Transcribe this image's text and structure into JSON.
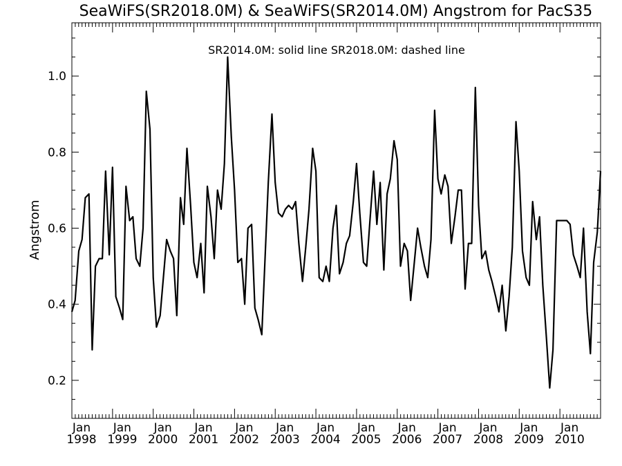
{
  "chart_data": {
    "type": "line",
    "title": "SeaWiFS(SR2018.0M) & SeaWiFS(SR2014.0M)  Angstrom for PacS35",
    "legend_text": "SR2014.0M: solid line   SR2018.0M: dashed line",
    "ylabel": "Angstrom",
    "xlim": [
      1998.0,
      2011.0
    ],
    "ylim": [
      0.1,
      1.14
    ],
    "y_ticks": [
      0.2,
      0.4,
      0.6,
      0.8,
      1.0
    ],
    "y_tick_labels": [
      "0.2",
      "0.4",
      "0.6",
      "0.8",
      "1.0"
    ],
    "x_ticks": [
      1998,
      1999,
      2000,
      2001,
      2002,
      2003,
      2004,
      2005,
      2006,
      2007,
      2008,
      2009,
      2010
    ],
    "x_tick_month": "Jan",
    "x_tick_years": [
      "1998",
      "1999",
      "2000",
      "2001",
      "2002",
      "2003",
      "2004",
      "2005",
      "2006",
      "2007",
      "2008",
      "2009",
      "2010"
    ],
    "series": [
      {
        "style": "solid",
        "x": [
          1998.0,
          1998.08,
          1998.17,
          1998.25,
          1998.33,
          1998.42,
          1998.5,
          1998.58,
          1998.67,
          1998.75,
          1998.83,
          1998.92,
          1999.0,
          1999.08,
          1999.17,
          1999.25,
          1999.33,
          1999.42,
          1999.5,
          1999.58,
          1999.67,
          1999.75,
          1999.83,
          1999.92,
          2000.0,
          2000.08,
          2000.17,
          2000.25,
          2000.33,
          2000.42,
          2000.5,
          2000.58,
          2000.67,
          2000.75,
          2000.83,
          2000.92,
          2001.0,
          2001.08,
          2001.17,
          2001.25,
          2001.33,
          2001.42,
          2001.5,
          2001.58,
          2001.67,
          2001.75,
          2001.83,
          2001.92,
          2002.0,
          2002.08,
          2002.17,
          2002.25,
          2002.33,
          2002.42,
          2002.5,
          2002.58,
          2002.67,
          2002.75,
          2002.83,
          2002.92,
          2003.0,
          2003.08,
          2003.17,
          2003.25,
          2003.33,
          2003.42,
          2003.5,
          2003.58,
          2003.67,
          2003.75,
          2003.83,
          2003.92,
          2004.0,
          2004.08,
          2004.17,
          2004.25,
          2004.33,
          2004.42,
          2004.5,
          2004.58,
          2004.67,
          2004.75,
          2004.83,
          2004.92,
          2005.0,
          2005.08,
          2005.17,
          2005.25,
          2005.33,
          2005.42,
          2005.5,
          2005.58,
          2005.67,
          2005.75,
          2005.83,
          2005.92,
          2006.0,
          2006.08,
          2006.17,
          2006.25,
          2006.33,
          2006.42,
          2006.5,
          2006.58,
          2006.67,
          2006.75,
          2006.83,
          2006.92,
          2007.0,
          2007.08,
          2007.17,
          2007.25,
          2007.33,
          2007.42,
          2007.5,
          2007.58,
          2007.67,
          2007.75,
          2007.83,
          2007.92,
          2008.0,
          2008.08,
          2008.17,
          2008.25,
          2008.33,
          2008.42,
          2008.5,
          2008.58,
          2008.67,
          2008.75,
          2008.83,
          2008.92,
          2009.0,
          2009.08,
          2009.17,
          2009.25,
          2009.33,
          2009.42,
          2009.5,
          2009.58,
          2009.67,
          2009.75,
          2009.83,
          2009.92,
          2010.0,
          2010.08,
          2010.17,
          2010.25,
          2010.33,
          2010.42,
          2010.5,
          2010.58,
          2010.67,
          2010.75,
          2010.83,
          2010.92,
          2011.0
        ],
        "y": [
          0.38,
          0.41,
          0.54,
          0.57,
          0.68,
          0.69,
          0.28,
          0.5,
          0.52,
          0.52,
          0.75,
          0.53,
          0.76,
          0.42,
          0.39,
          0.36,
          0.71,
          0.62,
          0.63,
          0.52,
          0.5,
          0.6,
          0.96,
          0.86,
          0.47,
          0.34,
          0.37,
          0.47,
          0.57,
          0.54,
          0.52,
          0.37,
          0.68,
          0.61,
          0.81,
          0.66,
          0.51,
          0.47,
          0.56,
          0.43,
          0.71,
          0.63,
          0.52,
          0.7,
          0.65,
          0.77,
          1.05,
          0.84,
          0.7,
          0.51,
          0.52,
          0.4,
          0.6,
          0.61,
          0.39,
          0.36,
          0.32,
          0.52,
          0.72,
          0.9,
          0.72,
          0.64,
          0.63,
          0.65,
          0.66,
          0.65,
          0.67,
          0.56,
          0.46,
          0.55,
          0.65,
          0.81,
          0.75,
          0.47,
          0.46,
          0.5,
          0.46,
          0.6,
          0.66,
          0.48,
          0.51,
          0.56,
          0.58,
          0.67,
          0.77,
          0.64,
          0.51,
          0.5,
          0.62,
          0.75,
          0.61,
          0.72,
          0.49,
          0.69,
          0.73,
          0.83,
          0.78,
          0.5,
          0.56,
          0.54,
          0.41,
          0.51,
          0.6,
          0.55,
          0.5,
          0.47,
          0.57,
          0.91,
          0.73,
          0.69,
          0.74,
          0.71,
          0.56,
          0.63,
          0.7,
          0.7,
          0.44,
          0.56,
          0.56,
          0.97,
          0.66,
          0.52,
          0.54,
          0.49,
          0.46,
          0.42,
          0.38,
          0.45,
          0.33,
          0.42,
          0.55,
          0.88,
          0.75,
          0.54,
          0.47,
          0.45,
          0.67,
          0.57,
          0.63,
          0.45,
          0.31,
          0.18,
          0.28,
          0.62,
          0.62,
          0.62,
          0.62,
          0.61,
          0.53,
          0.5,
          0.47,
          0.6,
          0.38,
          0.27,
          0.51,
          0.59,
          0.75
        ]
      }
    ]
  }
}
